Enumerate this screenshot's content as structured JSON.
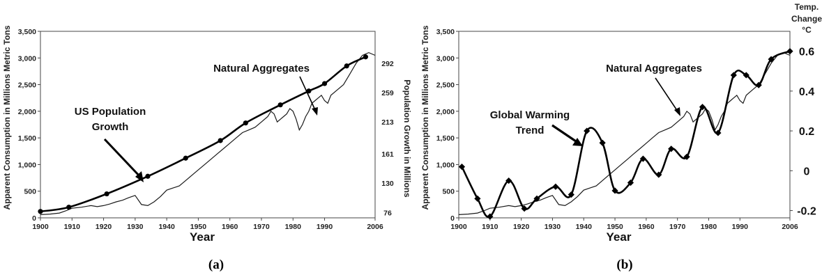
{
  "chart_data": [
    {
      "type": "line",
      "panel_label": "(a)",
      "xlabel": "Year",
      "ylabel": "Apparent Consumption in Millions Metric Tons",
      "ylabel_right": "Population Growth in Millions",
      "xlim": [
        1900,
        2006
      ],
      "ylim": [
        0,
        3500
      ],
      "x_ticks": [
        "1900",
        "1910",
        "1920",
        "1930",
        "1940",
        "1950",
        "1960",
        "1970",
        "1980",
        "1990",
        "2006"
      ],
      "y_ticks": [
        "0",
        "500",
        "1,000",
        "1,500",
        "2,000",
        "2,500",
        "3,000",
        "3,500"
      ],
      "y_tick_values": [
        0,
        500,
        1000,
        1500,
        2000,
        2500,
        3000,
        3500
      ],
      "right_ticks": [
        "76",
        "130",
        "161",
        "213",
        "259",
        "292"
      ],
      "right_tick_positions": [
        100,
        650,
        1200,
        1800,
        2350,
        2900
      ],
      "annotations": [
        "US Population Growth",
        "Natural Aggregates"
      ],
      "annotation_lines": [
        [
          "US Population",
          "Growth"
        ],
        [
          "Natural Aggregates"
        ]
      ],
      "series": [
        {
          "name": "Natural Aggregates",
          "x": [
            1900,
            1903,
            1906,
            1908,
            1910,
            1913,
            1916,
            1918,
            1920,
            1922,
            1924,
            1926,
            1928,
            1930,
            1932,
            1934,
            1936,
            1938,
            1940,
            1942,
            1944,
            1946,
            1948,
            1950,
            1952,
            1954,
            1956,
            1958,
            1960,
            1962,
            1964,
            1966,
            1968,
            1970,
            1972,
            1973,
            1974,
            1975,
            1976,
            1977,
            1978,
            1979,
            1980,
            1981,
            1982,
            1983,
            1984,
            1985,
            1986,
            1987,
            1988,
            1989,
            1990,
            1991,
            1992,
            1994,
            1996,
            1998,
            2000,
            2002,
            2004,
            2006
          ],
          "y": [
            60,
            70,
            90,
            130,
            180,
            200,
            230,
            210,
            230,
            260,
            300,
            330,
            380,
            420,
            250,
            230,
            300,
            400,
            520,
            560,
            600,
            700,
            800,
            900,
            1000,
            1100,
            1200,
            1300,
            1400,
            1500,
            1600,
            1650,
            1700,
            1800,
            1900,
            2000,
            1950,
            1800,
            1850,
            1900,
            1950,
            2050,
            2000,
            1850,
            1650,
            1750,
            1900,
            2000,
            2150,
            2200,
            2250,
            2300,
            2200,
            2150,
            2300,
            2400,
            2500,
            2700,
            2900,
            3050,
            3100,
            3050
          ]
        },
        {
          "name": "US Population Growth",
          "x": [
            1900,
            1909,
            1921,
            1934,
            1946,
            1957,
            1965,
            1976,
            1985,
            1990,
            1997,
            2003
          ],
          "y": [
            120,
            200,
            450,
            780,
            1120,
            1450,
            1780,
            2120,
            2380,
            2520,
            2850,
            3020
          ]
        }
      ]
    },
    {
      "type": "line",
      "panel_label": "(b)",
      "xlabel": "Year",
      "ylabel": "Apparent Consumption in Millions Metric Tons",
      "ylabel_right": "Temp. Change °C",
      "ylabel_right_lines": [
        "Temp.",
        "Change",
        "°C"
      ],
      "xlim": [
        1900,
        2006
      ],
      "ylim": [
        0,
        3500
      ],
      "x_ticks": [
        "1900",
        "1910",
        "1920",
        "1930",
        "1940",
        "1950",
        "1960",
        "1970",
        "1980",
        "1990",
        "2006"
      ],
      "y_ticks": [
        "0",
        "500",
        "1,000",
        "1,500",
        "2,000",
        "2,500",
        "3,000",
        "3,500"
      ],
      "y_tick_values": [
        0,
        500,
        1000,
        1500,
        2000,
        2500,
        3000,
        3500
      ],
      "right_ticks": [
        "0.6",
        "0.4",
        "0.2",
        "0",
        "-0.2"
      ],
      "right_tick_values": [
        0.6,
        0.4,
        0.2,
        0.0,
        -0.2
      ],
      "right_ylim": [
        -0.2365,
        0.7
      ],
      "annotations": [
        "Global Warming Trend",
        "Natural Aggregates"
      ],
      "annotation_lines": [
        [
          "Global Warming",
          "Trend"
        ],
        [
          "Natural Aggregates"
        ]
      ],
      "series": [
        {
          "name": "Natural Aggregates",
          "x": [
            1900,
            1903,
            1906,
            1908,
            1910,
            1913,
            1916,
            1918,
            1920,
            1922,
            1924,
            1926,
            1928,
            1930,
            1932,
            1934,
            1936,
            1938,
            1940,
            1942,
            1944,
            1946,
            1948,
            1950,
            1952,
            1954,
            1956,
            1958,
            1960,
            1962,
            1964,
            1966,
            1968,
            1970,
            1972,
            1973,
            1974,
            1975,
            1976,
            1977,
            1978,
            1979,
            1980,
            1981,
            1982,
            1983,
            1984,
            1985,
            1986,
            1987,
            1988,
            1989,
            1990,
            1991,
            1992,
            1994,
            1996,
            1998,
            2000,
            2002,
            2004,
            2006
          ],
          "y": [
            60,
            70,
            90,
            130,
            180,
            200,
            230,
            210,
            230,
            260,
            300,
            330,
            380,
            420,
            250,
            230,
            300,
            400,
            520,
            560,
            600,
            700,
            800,
            900,
            1000,
            1100,
            1200,
            1300,
            1400,
            1500,
            1600,
            1650,
            1700,
            1800,
            1900,
            2000,
            1950,
            1800,
            1850,
            1900,
            1950,
            2050,
            2000,
            1850,
            1650,
            1750,
            1900,
            2000,
            2150,
            2200,
            2250,
            2300,
            2200,
            2150,
            2300,
            2400,
            2500,
            2700,
            2900,
            3050,
            3100,
            3050
          ]
        },
        {
          "name": "Global Warming Trend",
          "axis": "right",
          "x": [
            1901,
            1906,
            1910,
            1916,
            1921,
            1925,
            1931,
            1936,
            1941,
            1946,
            1950,
            1955,
            1959,
            1964,
            1968,
            1973,
            1978,
            1983,
            1988,
            1992,
            1996,
            2000,
            2006
          ],
          "y": [
            0.02,
            -0.14,
            -0.23,
            -0.05,
            -0.19,
            -0.14,
            -0.08,
            -0.12,
            0.2,
            0.14,
            -0.1,
            -0.06,
            0.06,
            -0.02,
            0.11,
            0.07,
            0.32,
            0.19,
            0.48,
            0.48,
            0.43,
            0.56,
            0.6
          ]
        }
      ]
    }
  ]
}
